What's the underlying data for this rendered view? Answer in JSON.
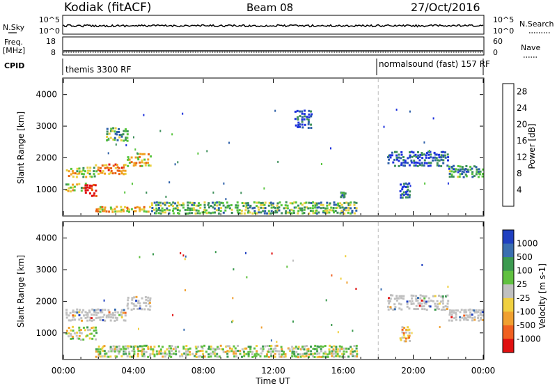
{
  "header": {
    "station": "Kodiak (fitACF)",
    "beam": "Beam 08",
    "date": "27/Oct/2016"
  },
  "summary_labels": {
    "nsky": "N.Sky",
    "nsearch": "N.Search",
    "freq_line1": "Freq.",
    "freq_line2": "[MHz]",
    "nave": "Nave",
    "cpid": "CPID",
    "nsky_ticks": [
      "10^5",
      "10^0"
    ],
    "nsearch_ticks": [
      "10^5",
      "10^0"
    ],
    "freq_ticks": [
      "18",
      "8"
    ],
    "nave_ticks": [
      "60",
      "0"
    ]
  },
  "cpid_segments": [
    {
      "name": "themis 3300 RF",
      "start_hour": 0,
      "end_hour": 18
    },
    {
      "name": "normalsound (fast) 157 RF",
      "start_hour": 18,
      "end_hour": 24
    }
  ],
  "chart_data": [
    {
      "type": "heatmap",
      "id": "power",
      "ylabel": "Slant Range [km]",
      "xlabel": "",
      "xlim": [
        0,
        24
      ],
      "ylim": [
        180,
        4500
      ],
      "yticks": [
        "1000",
        "2000",
        "3000",
        "4000"
      ],
      "colorbar_label": "Power [dB]",
      "colorbar_ticks": [
        "4",
        "8",
        "12",
        "16",
        "20",
        "24",
        "28"
      ],
      "colorbar_range": [
        0,
        30
      ],
      "colors": [
        "#1e32dc",
        "#2c5fa8",
        "#3d8f5a",
        "#56c43c",
        "#e8d040",
        "#f0a020",
        "#e86010",
        "#e01010"
      ],
      "echo_regions": [
        {
          "t0": 0.1,
          "t1": 1.8,
          "r0": 1350,
          "r1": 1700,
          "level": 0.55
        },
        {
          "t0": 1.8,
          "t1": 3.6,
          "r0": 1450,
          "r1": 1800,
          "level": 0.7
        },
        {
          "t0": 3.6,
          "t1": 5.0,
          "r0": 1700,
          "r1": 2150,
          "level": 0.6
        },
        {
          "t0": 0.1,
          "t1": 1.3,
          "r0": 900,
          "r1": 1200,
          "level": 0.55
        },
        {
          "t0": 1.2,
          "t1": 1.9,
          "r0": 750,
          "r1": 1150,
          "level": 0.97
        },
        {
          "t0": 2.4,
          "t1": 3.7,
          "r0": 2500,
          "r1": 2950,
          "level": 0.35
        },
        {
          "t0": 1.8,
          "t1": 5.0,
          "r0": 250,
          "r1": 450,
          "level": 0.6
        },
        {
          "t0": 5.0,
          "t1": 16.8,
          "r0": 200,
          "r1": 600,
          "level": 0.4
        },
        {
          "t0": 13.2,
          "t1": 14.2,
          "r0": 2900,
          "r1": 3500,
          "level": 0.1
        },
        {
          "t0": 15.8,
          "t1": 16.1,
          "r0": 700,
          "r1": 900,
          "level": 0.2
        },
        {
          "t0": 18.5,
          "t1": 22.0,
          "r0": 1700,
          "r1": 2200,
          "level": 0.15
        },
        {
          "t0": 22.0,
          "t1": 24.0,
          "r0": 1350,
          "r1": 1750,
          "level": 0.3
        },
        {
          "t0": 19.2,
          "t1": 19.8,
          "r0": 700,
          "r1": 1200,
          "level": 0.15
        }
      ]
    },
    {
      "type": "heatmap",
      "id": "velocity",
      "ylabel": "Slant Range [km]",
      "xlabel": "Time UT",
      "xlim": [
        0,
        24
      ],
      "ylim": [
        180,
        4500
      ],
      "yticks": [
        "1000",
        "2000",
        "3000",
        "4000"
      ],
      "xticks": [
        "00:00",
        "04:00",
        "08:00",
        "12:00",
        "16:00",
        "20:00",
        "00:00"
      ],
      "colorbar_label": "Velocity [m s-1]",
      "colorbar_ticks": [
        "1000",
        "500",
        "100",
        "25",
        "-25",
        "-100",
        "-500",
        "-1000"
      ],
      "colors": [
        "#2040c0",
        "#3b6fb0",
        "#3c9a50",
        "#60c040",
        "#c0c0c0",
        "#f0d040",
        "#f0a030",
        "#f06020",
        "#e01010"
      ],
      "echo_regions": [
        {
          "t0": 0.1,
          "t1": 3.6,
          "r0": 1350,
          "r1": 1750,
          "level": "ground"
        },
        {
          "t0": 3.6,
          "t1": 5.0,
          "r0": 1700,
          "r1": 2150,
          "level": "ground"
        },
        {
          "t0": 0.1,
          "t1": 1.9,
          "r0": 750,
          "r1": 1200,
          "level": "mixed"
        },
        {
          "t0": 1.8,
          "t1": 16.8,
          "r0": 200,
          "r1": 600,
          "level": "mixed"
        },
        {
          "t0": 18.5,
          "t1": 22.0,
          "r0": 1700,
          "r1": 2200,
          "level": "ground"
        },
        {
          "t0": 22.0,
          "t1": 24.0,
          "r0": 1350,
          "r1": 1750,
          "level": "ground"
        },
        {
          "t0": 19.2,
          "t1": 19.8,
          "r0": 700,
          "r1": 1200,
          "level": "neg"
        }
      ]
    }
  ]
}
